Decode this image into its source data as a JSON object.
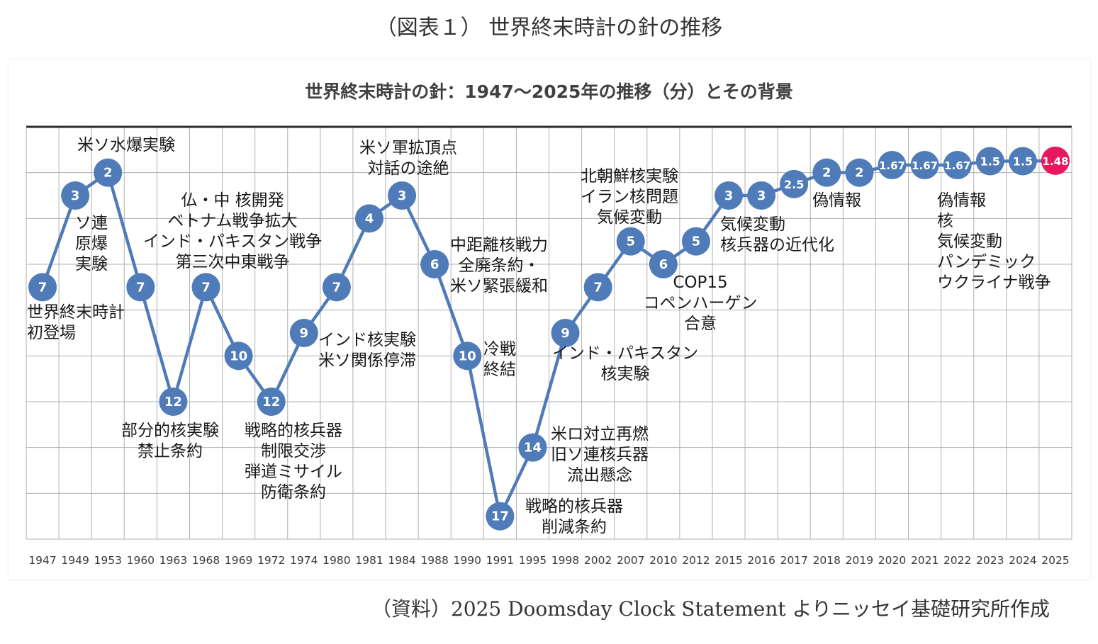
{
  "figure_title": "（図表１） 世界終末時計の針の推移",
  "source": "（資料）2025 Doomsday Clock Statement よりニッセイ基礎研究所作成",
  "colors": {
    "line": "#4f7bb8",
    "marker": "#4f7bb8",
    "highlight": "#e8185c",
    "grid": "#b0b0b0",
    "axis": "#2b2b2b"
  },
  "chart_data": {
    "type": "line",
    "title": "世界終末時計の針：1947～2025年の推移（分）とその背景",
    "xlabel": "",
    "ylabel": "",
    "ylim": [
      0,
      18
    ],
    "y_inverted": true,
    "grid": true,
    "categories": [
      "1947",
      "1949",
      "1953",
      "1960",
      "1963",
      "1968",
      "1969",
      "1972",
      "1974",
      "1980",
      "1981",
      "1984",
      "1988",
      "1990",
      "1991",
      "1995",
      "1998",
      "2002",
      "2007",
      "2010",
      "2012",
      "2015",
      "2016",
      "2017",
      "2018",
      "2019",
      "2020",
      "2021",
      "2022",
      "2023",
      "2024",
      "2025"
    ],
    "values": [
      7,
      3,
      2,
      7,
      12,
      7,
      10,
      12,
      9,
      7,
      4,
      3,
      6,
      10,
      17,
      14,
      9,
      7,
      5,
      6,
      5,
      3,
      3,
      2.5,
      2,
      2,
      1.67,
      1.67,
      1.67,
      1.5,
      1.5,
      1.48
    ],
    "point_labels": [
      "7",
      "3",
      "2",
      "7",
      "12",
      "7",
      "10",
      "12",
      "9",
      "7",
      "4",
      "3",
      "6",
      "10",
      "17",
      "14",
      "9",
      "7",
      "5",
      "6",
      "5",
      "3",
      "3",
      "2.5",
      "2",
      "2",
      "1.67",
      "1.67",
      "1.67",
      "1.5",
      "1.5",
      "1.48"
    ],
    "highlight_index": 31,
    "annotations": [
      {
        "lines": [
          "世界終末時計",
          "初登場"
        ]
      },
      {
        "lines": [
          "ソ連",
          "原爆",
          "実験"
        ]
      },
      {
        "lines": [
          "米ソ水爆実験"
        ]
      },
      {
        "lines": [
          "部分的核実験",
          "禁止条約"
        ]
      },
      {
        "lines": [
          "仏・中 核開発",
          "ベトナム戦争拡大",
          "インド・パキスタン戦争",
          "第三次中東戦争"
        ]
      },
      {
        "lines": [
          "戦略的核兵器",
          "制限交渉",
          "弾道ミサイル",
          "防衛条約"
        ]
      },
      {
        "lines": [
          "インド核実験",
          "米ソ関係停滞"
        ]
      },
      {
        "lines": [
          "米ソ軍拡頂点",
          "対話の途絶"
        ]
      },
      {
        "lines": [
          "中距離核戦力",
          "全廃条約・",
          "米ソ緊張緩和"
        ]
      },
      {
        "lines": [
          "冷戦",
          "終結"
        ]
      },
      {
        "lines": [
          "戦略的核兵器",
          "削減条約"
        ]
      },
      {
        "lines": [
          "米ロ対立再燃",
          "旧ソ連核兵器",
          "流出懸念"
        ]
      },
      {
        "lines": [
          "インド・パキスタン",
          "核実験"
        ]
      },
      {
        "lines": [
          "北朝鮮核実験",
          "イラン核問題",
          "気候変動"
        ]
      },
      {
        "lines": [
          "COP15",
          "コペンハーゲン",
          "合意"
        ]
      },
      {
        "lines": [
          "気候変動",
          "核兵器の近代化"
        ]
      },
      {
        "lines": [
          "偽情報"
        ]
      },
      {
        "lines": [
          "偽情報",
          "核",
          "気候変動",
          "パンデミック",
          "ウクライナ戦争"
        ]
      }
    ]
  }
}
